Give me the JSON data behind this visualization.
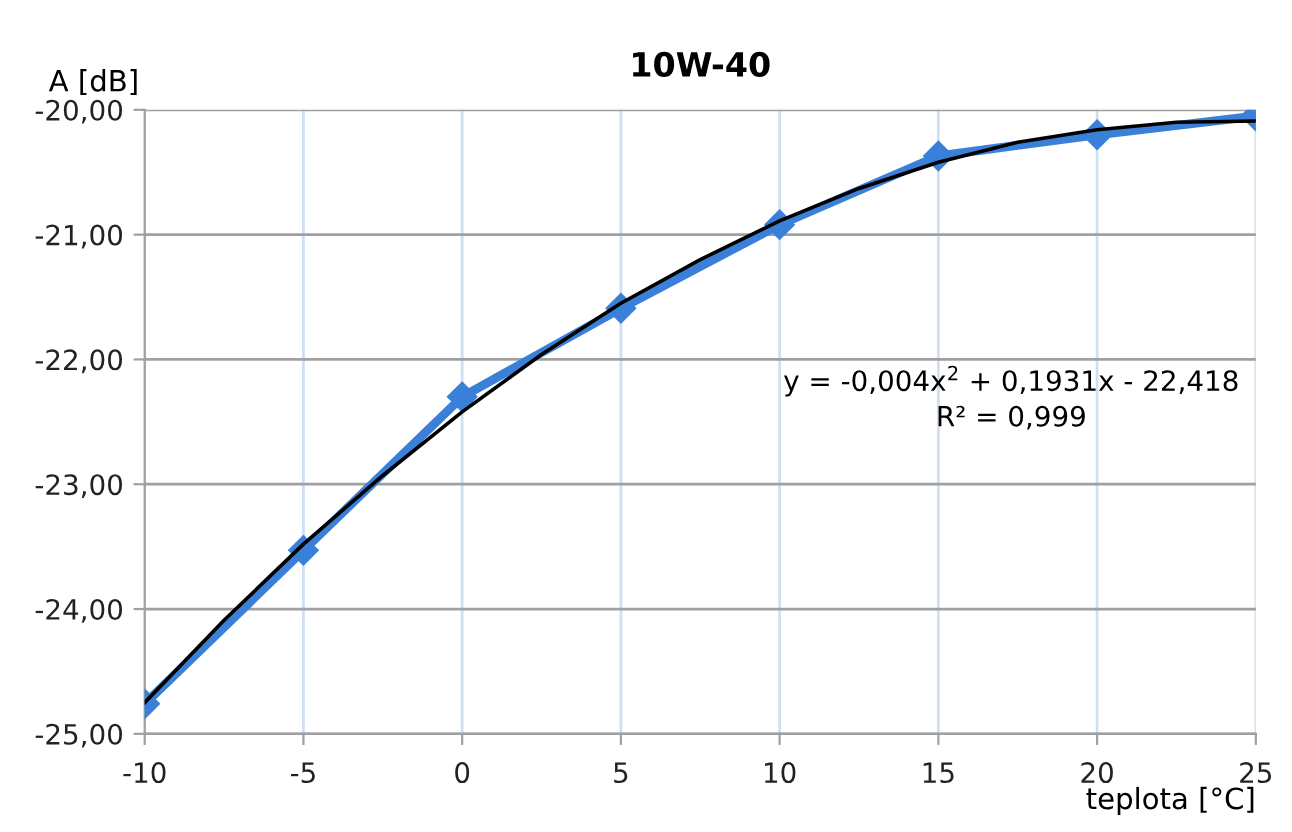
{
  "chart_data": {
    "type": "line",
    "title": "10W-40",
    "xlabel": "teplota [°C]",
    "ylabel": "A [dB]",
    "x": [
      -10,
      -5,
      0,
      5,
      10,
      15,
      20,
      25
    ],
    "series": [
      {
        "color": "#3a80d8",
        "values": [
          -24.76,
          -23.53,
          -22.3,
          -21.59,
          -20.92,
          -20.37,
          -20.2,
          -20.05
        ],
        "marker": "diamond"
      },
      {
        "type": "line",
        "color": "#000000",
        "marker": "none",
        "x": [
          -10,
          -7.5,
          -5,
          -2.5,
          0,
          2.5,
          5,
          7.5,
          10,
          12.5,
          15,
          17.5,
          20,
          22.5,
          25
        ],
        "values": [
          -24.75,
          -24.09,
          -23.48,
          -22.93,
          -22.42,
          -21.96,
          -21.55,
          -21.2,
          -20.89,
          -20.63,
          -20.42,
          -20.26,
          -20.16,
          -20.1,
          -20.09
        ]
      }
    ],
    "xlim": [
      -10,
      25
    ],
    "xticks": [
      -10,
      -5,
      0,
      5,
      10,
      15,
      20,
      25
    ],
    "ylim": [
      -25,
      -20
    ],
    "yticks": [
      {
        "value": -25,
        "label": "-25,00"
      },
      {
        "value": -24,
        "label": "-24,00"
      },
      {
        "value": -23,
        "label": "-23,00"
      },
      {
        "value": -22,
        "label": "-22,00"
      },
      {
        "value": -21,
        "label": "-21,00"
      },
      {
        "value": -20,
        "label": "-20,00"
      }
    ],
    "grid": true,
    "legend": false,
    "annotations": [
      "y = -0,004x$^{2}$ + 0,1931x - 22,418",
      "R² = 0,999"
    ]
  }
}
